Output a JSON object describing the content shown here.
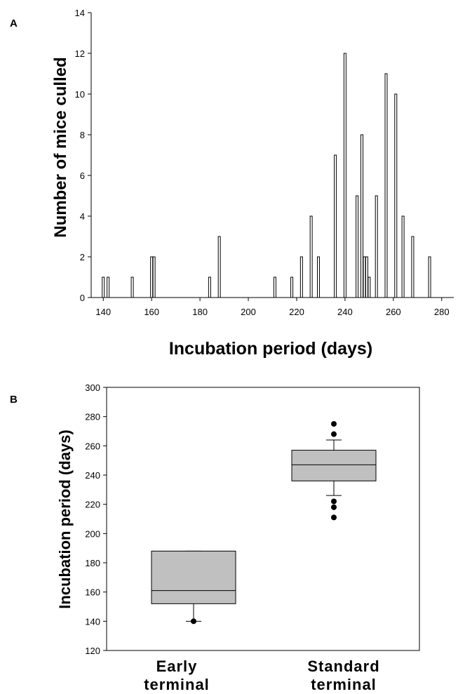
{
  "chart_data": [
    {
      "panel": "A",
      "type": "bar",
      "xlabel": "Incubation period (days)",
      "ylabel": "Number of mice culled",
      "xlim": [
        135,
        285
      ],
      "ylim": [
        0,
        14
      ],
      "xticks": [
        "140",
        "160",
        "180",
        "200",
        "220",
        "240",
        "260",
        "280"
      ],
      "yticks": [
        "0",
        "2",
        "4",
        "6",
        "8",
        "10",
        "12",
        "14"
      ],
      "x": [
        140,
        142,
        152,
        160,
        161,
        184,
        188,
        211,
        218,
        222,
        226,
        229,
        236,
        240,
        245,
        247,
        248,
        249,
        250,
        253,
        257,
        261,
        264,
        268,
        275
      ],
      "values": [
        1,
        1,
        1,
        2,
        2,
        1,
        3,
        1,
        1,
        2,
        4,
        2,
        7,
        12,
        5,
        8,
        2,
        2,
        1,
        5,
        11,
        10,
        4,
        3,
        2
      ],
      "grid": false
    },
    {
      "panel": "B",
      "type": "box",
      "ylabel": "Incubation period (days)",
      "ylim": [
        120,
        300
      ],
      "yticks": [
        "120",
        "140",
        "160",
        "180",
        "200",
        "220",
        "240",
        "260",
        "280",
        "300"
      ],
      "categories": [
        {
          "line1": "Early",
          "line2": "terminal"
        },
        {
          "line1": "Standard",
          "line2": "terminal"
        }
      ],
      "boxes": [
        {
          "q1": 152,
          "median": 161,
          "q3": 188,
          "whisker_low": 140,
          "whisker_high": 188,
          "outliers": [
            140
          ]
        },
        {
          "q1": 236,
          "median": 247,
          "q3": 257,
          "whisker_low": 226,
          "whisker_high": 264,
          "outliers": [
            211,
            218,
            222,
            268,
            275
          ]
        }
      ],
      "box_color": "#c0c0c0",
      "grid": false
    }
  ]
}
